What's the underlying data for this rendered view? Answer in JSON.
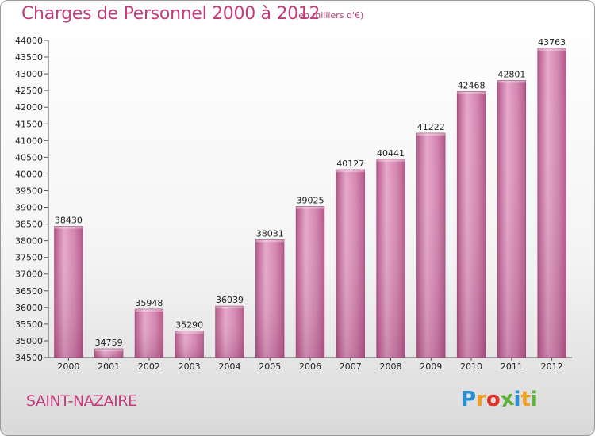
{
  "chart_data": {
    "type": "bar",
    "title": "Charges de Personnel 2000 à 2012",
    "subtitle": "(en milliers d'€)",
    "categories": [
      "2000",
      "2001",
      "2002",
      "2003",
      "2004",
      "2005",
      "2006",
      "2007",
      "2008",
      "2009",
      "2010",
      "2011",
      "2012"
    ],
    "values": [
      38430,
      34759,
      35948,
      35290,
      36039,
      38031,
      39025,
      40127,
      40441,
      41222,
      42468,
      42801,
      43763
    ],
    "ylim": [
      34500,
      44000
    ],
    "ytick_step": 500,
    "grid": false,
    "bar_color": "#c86f9f",
    "xlabel": "",
    "ylabel": ""
  },
  "footer": {
    "city": "SAINT-NAZAIRE",
    "logo": {
      "letters": [
        "P",
        "r",
        "o",
        "x",
        "i",
        "t",
        "i"
      ],
      "colors": [
        "#2a8fd1",
        "#f0a020",
        "#e2332a",
        "#5db13a",
        "#2a8fd1",
        "#f0a020",
        "#5db13a"
      ]
    }
  }
}
